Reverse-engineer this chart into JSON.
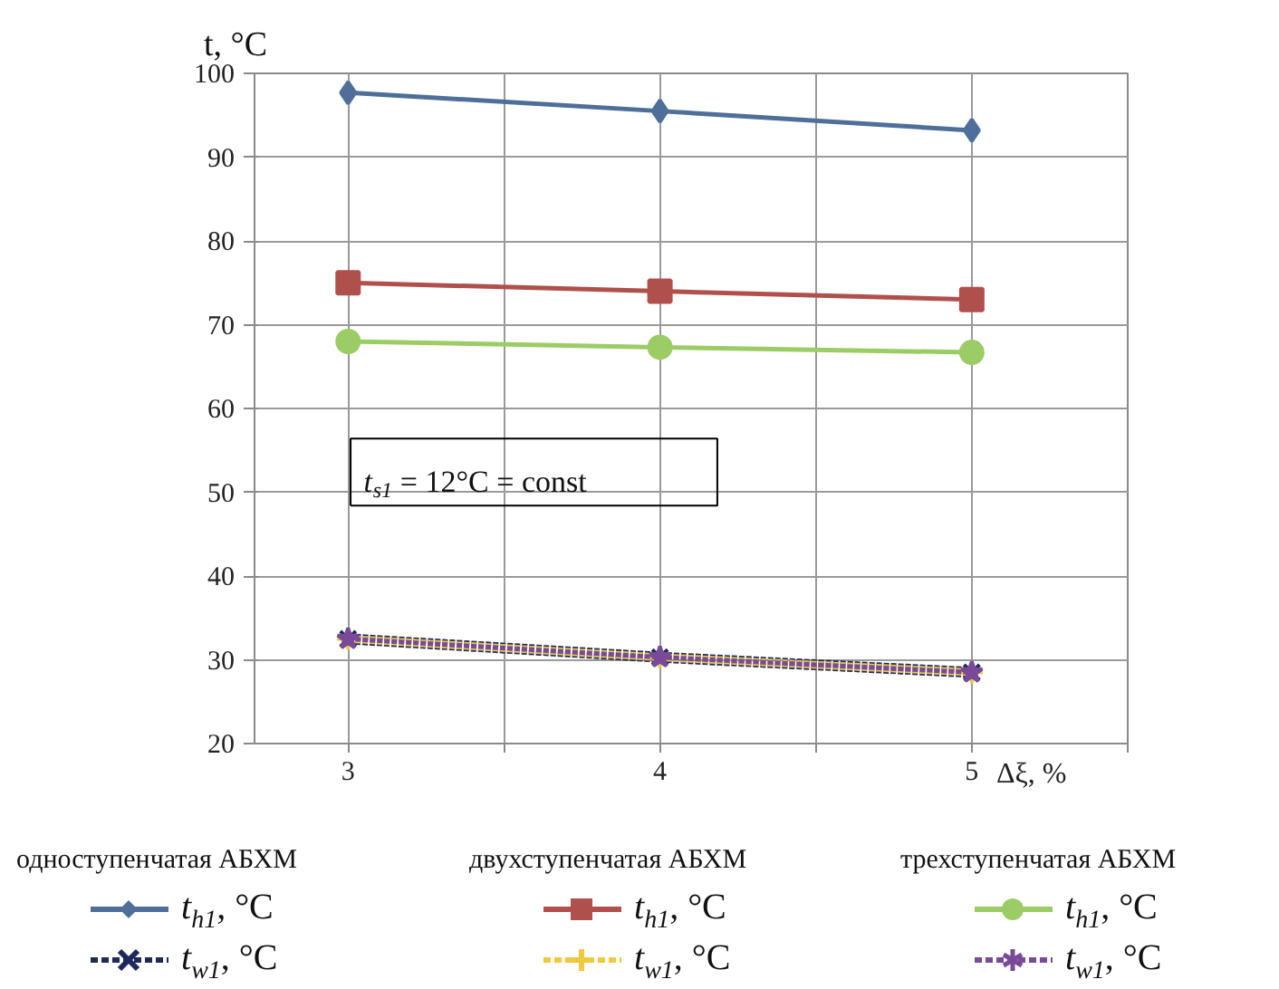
{
  "chart_data": {
    "type": "line",
    "ylabel": "t, °C",
    "xlabel": "Δξ, %",
    "x": [
      3,
      4,
      5
    ],
    "xlim": [
      2.7,
      5.5
    ],
    "xticks": [
      3,
      {
        "value": 3.5,
        "label": null
      },
      4,
      {
        "value": 4.5,
        "label": null
      },
      5,
      {
        "value": 5.5,
        "label": null
      }
    ],
    "ylim": [
      20,
      100
    ],
    "yticks": [
      20,
      30,
      40,
      50,
      60,
      70,
      80,
      90,
      100
    ],
    "grid": true,
    "legend": "bottom",
    "annotations": [
      "t$_{s1}$ = 12°C = const",
      "одноступенчатая АБХМ",
      "двухступенчатая АБХМ",
      "трехступенчатая АБХМ"
    ],
    "series": [
      {
        "name": "t$_{h1}$, °C",
        "color": "#4f6f9a",
        "marker": "diamond",
        "line_style": "solid",
        "values": [
          97.7,
          95.5,
          93.2
        ]
      },
      {
        "name": "t$_{w1}$, °C",
        "color": "#1f2a5c",
        "marker": "x",
        "line_style": "dashed",
        "values": [
          32.5,
          30.3,
          28.5
        ]
      },
      {
        "name": "t$_{h1}$, °C",
        "color": "#b0504c",
        "marker": "square",
        "line_style": "solid",
        "values": [
          75,
          74,
          73
        ]
      },
      {
        "name": "t$_{w1}$, °C",
        "color": "#f0c940",
        "marker": "cross",
        "line_style": "dashed",
        "values": [
          32.5,
          30.3,
          28.5
        ]
      },
      {
        "name": "t$_{h1}$, °C",
        "color": "#9ccc65",
        "marker": "circle",
        "line_style": "solid",
        "values": [
          68,
          67.3,
          66.7
        ]
      },
      {
        "name": "t$_{w1}$, °C",
        "color": "#7a4a9a",
        "marker": "star",
        "line_style": "dashed",
        "values": [
          32.5,
          30.3,
          28.5
        ]
      }
    ]
  }
}
